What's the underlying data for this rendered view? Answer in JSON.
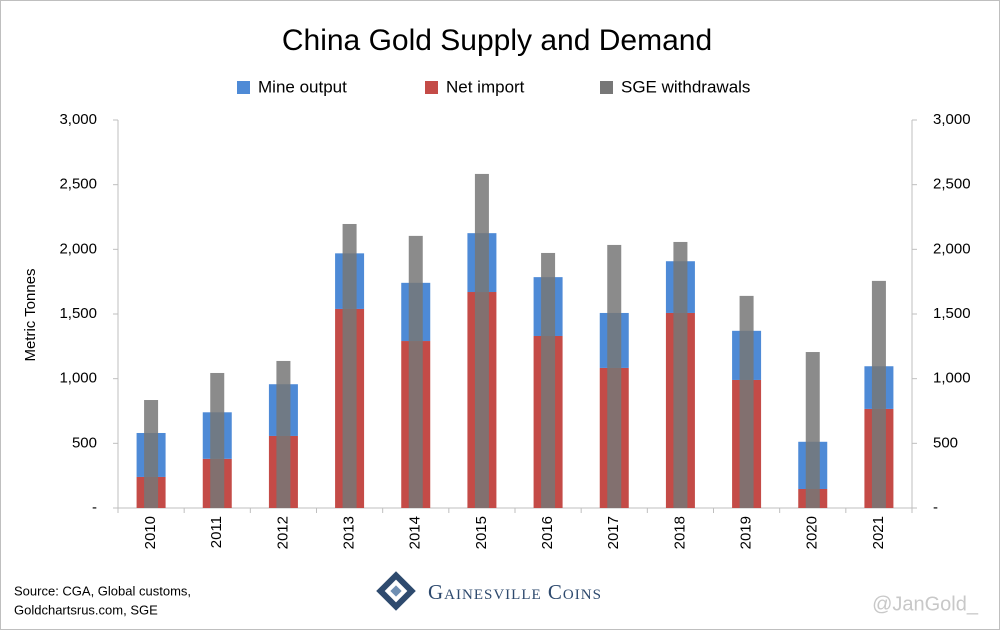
{
  "chart_data": {
    "type": "bar",
    "stacked": true,
    "title": "China Gold Supply and Demand",
    "y_label": "Metric Tonnes",
    "categories": [
      "2010",
      "2011",
      "2012",
      "2013",
      "2014",
      "2015",
      "2016",
      "2017",
      "2018",
      "2019",
      "2020",
      "2021"
    ],
    "series": [
      {
        "name": "Net import",
        "color": "#c44b47",
        "values": [
          240,
          380,
          557,
          1539,
          1291,
          1670,
          1330,
          1083,
          1508,
          990,
          147,
          766
        ]
      },
      {
        "name": "Mine output",
        "color": "#4e8ad6",
        "values": [
          340,
          360,
          400,
          430,
          450,
          455,
          455,
          425,
          400,
          380,
          365,
          330
        ]
      },
      {
        "name": "SGE withdrawals",
        "color": "#777777",
        "overlay": true,
        "values": [
          835,
          1044,
          1137,
          2196,
          2104,
          2583,
          1972,
          2034,
          2057,
          1640,
          1206,
          1756
        ]
      }
    ],
    "legend_order": [
      1,
      0,
      2
    ],
    "ylim": [
      0,
      3000
    ],
    "yticks": [
      {
        "value": 0,
        "label": "-"
      },
      500,
      {
        "value": 1000,
        "label": "1,000"
      },
      {
        "value": 1500,
        "label": "1,500"
      },
      {
        "value": 2000,
        "label": "2,000"
      },
      {
        "value": 2500,
        "label": "2,500"
      },
      {
        "value": 3000,
        "label": "3,000"
      }
    ],
    "y2lim": [
      0,
      3000
    ],
    "y2ticks": [
      {
        "value": 0,
        "label": "-"
      },
      500,
      {
        "value": 1000,
        "label": "1,000"
      },
      {
        "value": 1500,
        "label": "1,500"
      },
      {
        "value": 2000,
        "label": "2,000"
      },
      {
        "value": 2500,
        "label": "2,500"
      },
      {
        "value": 3000,
        "label": "3,000"
      }
    ],
    "grid": false,
    "source": [
      "Source: CGA, Global customs,",
      "Goldchartsrus.com, SGE"
    ],
    "logo": "Gainesville Coins",
    "watermark": "@JanGold_"
  }
}
